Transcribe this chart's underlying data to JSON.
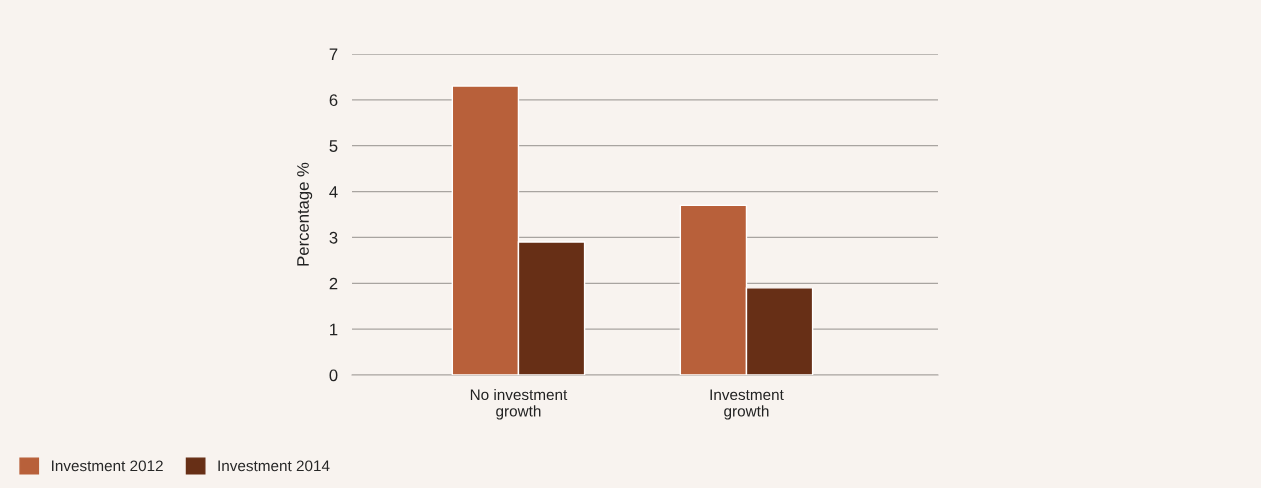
{
  "chart_data": {
    "type": "bar",
    "ylabel": "Percentage %",
    "categories": [
      "No investment\ngrowth",
      "Investment\ngrowth"
    ],
    "series": [
      {
        "name": "Investment 2012",
        "color": "#b8603a",
        "values": [
          6.3,
          3.7
        ]
      },
      {
        "name": "Investment 2014",
        "color": "#672f16",
        "values": [
          2.9,
          1.9
        ]
      }
    ],
    "ylim": [
      0,
      7
    ],
    "yticks": [
      0,
      1,
      2,
      3,
      4,
      5,
      6,
      7
    ],
    "grid": "y",
    "legend": "bottom left"
  }
}
